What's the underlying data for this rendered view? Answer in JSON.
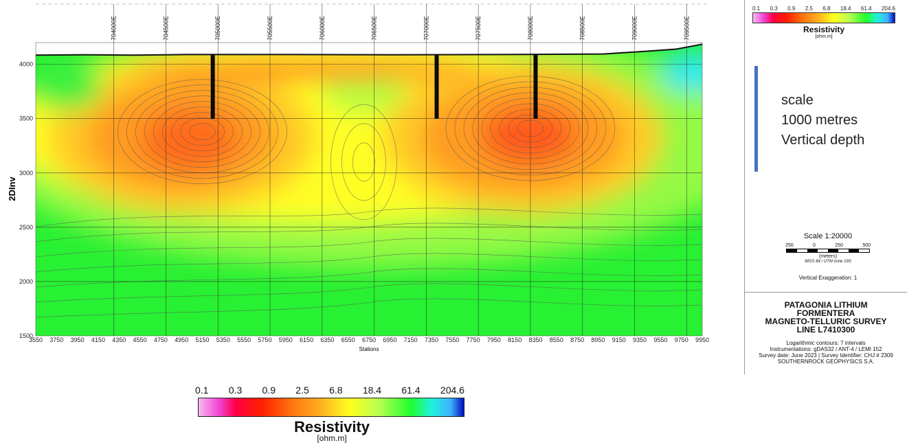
{
  "chart_data": {
    "type": "heatmap",
    "title": "",
    "xlabel": "Stations",
    "ylabel": "2DInv",
    "xlim": [
      3550,
      9950
    ],
    "ylim": [
      1500,
      4200
    ],
    "x_ticks": [
      3550,
      3750,
      3950,
      4150,
      4350,
      4550,
      4750,
      4950,
      5150,
      5350,
      5550,
      5750,
      5950,
      6150,
      6350,
      6550,
      6750,
      6950,
      7150,
      7350,
      7550,
      7750,
      7950,
      8150,
      8350,
      8550,
      8750,
      8950,
      9150,
      9350,
      9550,
      9750,
      9950
    ],
    "y_ticks": [
      1500,
      2000,
      2500,
      3000,
      3500,
      4000
    ],
    "top_axis_labels": [
      {
        "label": "704000E",
        "station": 4300
      },
      {
        "label": "704500E",
        "station": 4800
      },
      {
        "label": "705000E",
        "station": 5300
      },
      {
        "label": "705500E",
        "station": 5800
      },
      {
        "label": "706000E",
        "station": 6300
      },
      {
        "label": "706500E",
        "station": 6800
      },
      {
        "label": "707000E",
        "station": 7300
      },
      {
        "label": "707500E",
        "station": 7800
      },
      {
        "label": "708000E",
        "station": 8300
      },
      {
        "label": "708500E",
        "station": 8800
      },
      {
        "label": "709000E",
        "station": 9300
      },
      {
        "label": "709500E",
        "station": 9800
      }
    ],
    "grid": true,
    "surface_profile": [
      {
        "station": 3550,
        "elev": 4085
      },
      {
        "station": 4000,
        "elev": 4088
      },
      {
        "station": 4500,
        "elev": 4085
      },
      {
        "station": 5000,
        "elev": 4090
      },
      {
        "station": 6000,
        "elev": 4090
      },
      {
        "station": 7000,
        "elev": 4088
      },
      {
        "station": 8000,
        "elev": 4090
      },
      {
        "station": 9000,
        "elev": 4095
      },
      {
        "station": 9400,
        "elev": 4120
      },
      {
        "station": 9700,
        "elev": 4140
      },
      {
        "station": 9950,
        "elev": 4185
      }
    ],
    "drill_holes": [
      {
        "station": 5250,
        "top": 4090,
        "bottom": 3500
      },
      {
        "station": 7400,
        "top": 4090,
        "bottom": 3500
      },
      {
        "station": 8350,
        "top": 4090,
        "bottom": 3500
      }
    ],
    "anomalies": [
      {
        "station": 5150,
        "elev": 3380,
        "type": "conductor"
      },
      {
        "station": 8300,
        "elev": 3410,
        "type": "conductor"
      },
      {
        "station": 6700,
        "elev": 3100,
        "type": "intermediate"
      }
    ],
    "color_scale": {
      "ticks": [
        "0.1",
        "0.3",
        "0.9",
        "2.5",
        "6.8",
        "18.4",
        "61.4",
        "204.6"
      ],
      "title": "Resistivity",
      "unit": "[ohm.m]",
      "log": true
    }
  },
  "right_panel": {
    "legend": {
      "ticks": [
        "0.1",
        "0.3",
        "0.9",
        "2.5",
        "6.8",
        "18.4",
        "61.4",
        "204.6"
      ],
      "title": "Resistivity",
      "unit": "[ohm.m]"
    },
    "note_lines": [
      "scale",
      "1000 metres",
      "Vertical depth"
    ],
    "scale": {
      "title": "Scale 1:20000",
      "ticks": [
        "250",
        "0",
        "250",
        "500"
      ],
      "units": "(meters)",
      "datum": "WGS 84 / UTM zone 19S",
      "exaggeration": "Vertical Exaggeration: 1"
    },
    "survey": {
      "line1": "PATAGONIA LITHIUM",
      "line2": "FORMENTERA",
      "line3": "MAGNETO-TELLURIC SURVEY",
      "line4": "LINE L7410300",
      "note1": "Logarithmic contours: 7 intervals",
      "note2": "Instrumentations: gDAS32 / ANT-4 / LEMI 152",
      "note3": "Survey date: June 2023 | Survey Identifier: CHJ # 2309",
      "note4": "SOUTHERNROCK GEOPHYSICS S.A."
    }
  },
  "colors": {
    "low": "#ff2000",
    "mid": "#ffff20",
    "high": "#20ff30",
    "accent": "#4472c4"
  }
}
